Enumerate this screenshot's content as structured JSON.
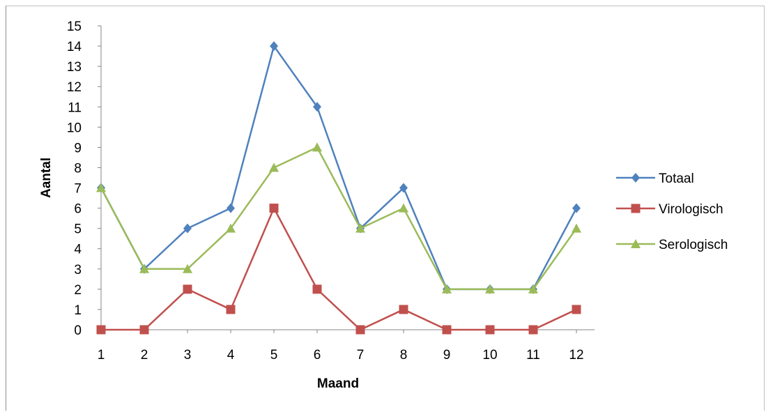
{
  "chart_data": {
    "type": "line",
    "title": "",
    "xlabel": "Maand",
    "ylabel": "Aantal",
    "categories": [
      "1",
      "2",
      "3",
      "4",
      "5",
      "6",
      "7",
      "8",
      "9",
      "10",
      "11",
      "12"
    ],
    "ylim": [
      0,
      15
    ],
    "yticks": [
      "0",
      "1",
      "2",
      "3",
      "4",
      "5",
      "6",
      "7",
      "8",
      "9",
      "10",
      "11",
      "12",
      "13",
      "14",
      "15"
    ],
    "grid": false,
    "legend_position": "right",
    "series": [
      {
        "name": "Totaal",
        "color": "#4f81bd",
        "marker": "diamond",
        "values": [
          7,
          3,
          5,
          6,
          14,
          11,
          5,
          7,
          2,
          2,
          2,
          6
        ]
      },
      {
        "name": "Virologisch",
        "color": "#c0504d",
        "marker": "square",
        "values": [
          0,
          0,
          2,
          1,
          6,
          2,
          0,
          1,
          0,
          0,
          0,
          1
        ]
      },
      {
        "name": "Serologisch",
        "color": "#9bbb59",
        "marker": "triangle",
        "values": [
          7,
          3,
          3,
          5,
          8,
          9,
          5,
          6,
          2,
          2,
          2,
          5
        ]
      }
    ]
  }
}
